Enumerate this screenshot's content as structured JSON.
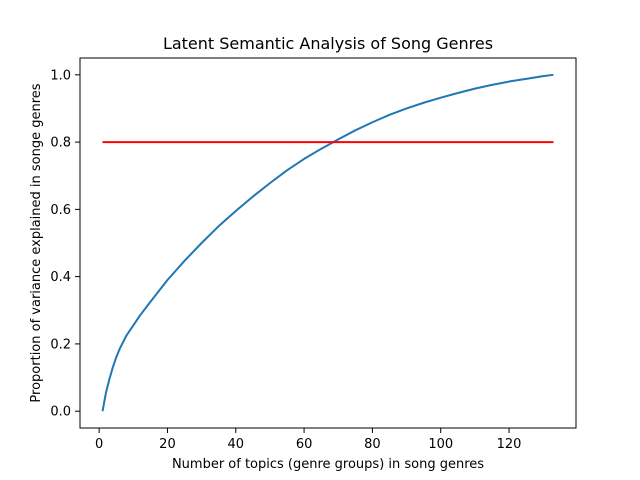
{
  "chart_data": {
    "type": "line",
    "title": "Latent Semantic Analysis of Song Genres",
    "xlabel": "Number of topics (genre groups) in song genres",
    "ylabel": "Proportion of variance explained in songe genres",
    "xlim": [
      -5.6,
      139.6
    ],
    "ylim": [
      -0.05,
      1.05
    ],
    "xticks": [
      0,
      20,
      40,
      60,
      80,
      100,
      120
    ],
    "yticks": [
      0.0,
      0.2,
      0.4,
      0.6,
      0.8,
      1.0
    ],
    "grid": false,
    "series": [
      {
        "color": "#1f77b4",
        "x": [
          1,
          2,
          3,
          4,
          5,
          6,
          7,
          8,
          10,
          12,
          15,
          20,
          25,
          30,
          35,
          40,
          45,
          50,
          55,
          60,
          65,
          70,
          75,
          80,
          85,
          90,
          95,
          100,
          105,
          110,
          115,
          120,
          125,
          130,
          133
        ],
        "y": [
          0.0,
          0.055,
          0.095,
          0.13,
          0.16,
          0.185,
          0.205,
          0.225,
          0.255,
          0.285,
          0.325,
          0.39,
          0.447,
          0.5,
          0.55,
          0.595,
          0.638,
          0.678,
          0.716,
          0.75,
          0.78,
          0.808,
          0.835,
          0.859,
          0.881,
          0.9,
          0.917,
          0.932,
          0.946,
          0.959,
          0.97,
          0.98,
          0.988,
          0.996,
          1.0
        ]
      },
      {
        "color": "#ff0000",
        "x": [
          1,
          133
        ],
        "y": [
          0.8,
          0.8
        ]
      }
    ]
  }
}
